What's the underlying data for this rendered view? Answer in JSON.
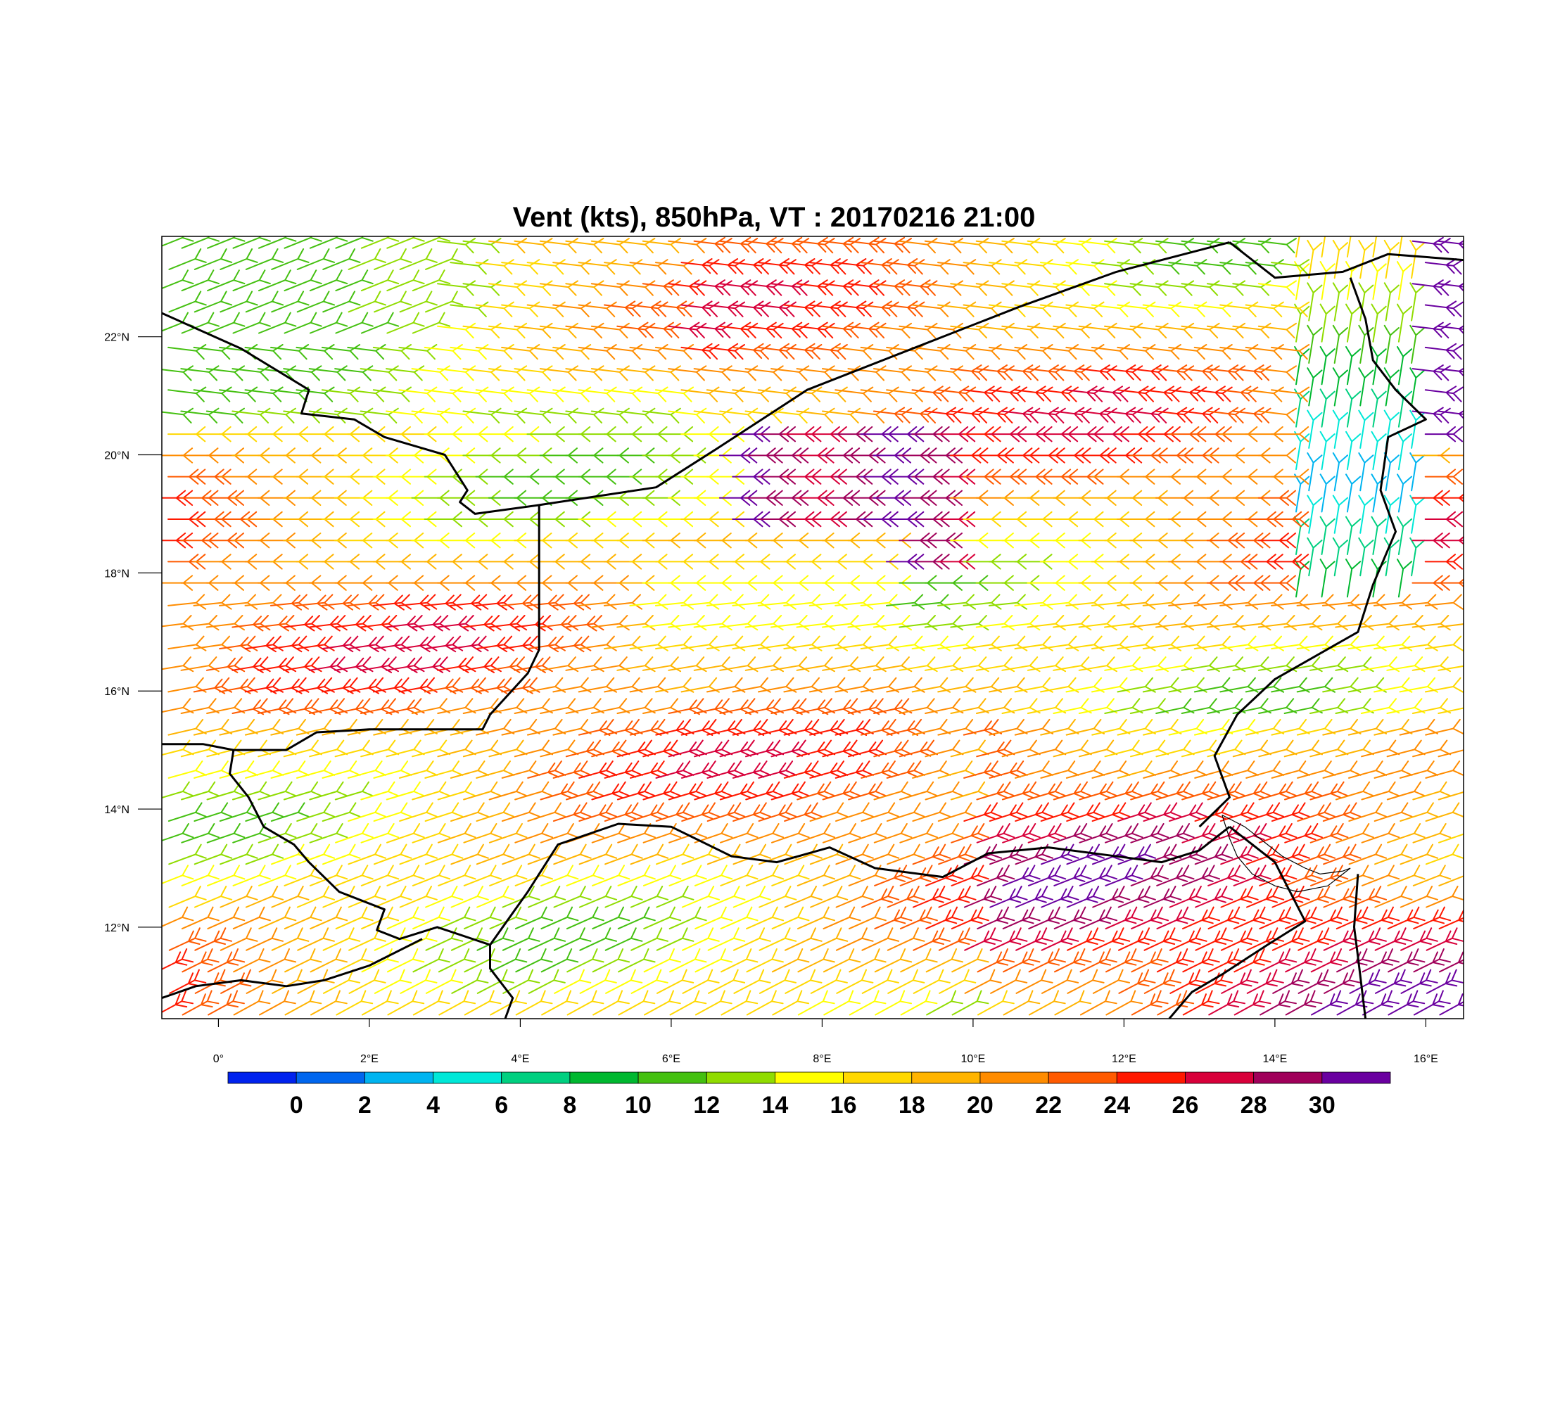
{
  "title": "Vent (kts), 850hPa, VT : 20170216  21:00",
  "map": {
    "lon_range": [
      -0.75,
      16.5
    ],
    "lat_range": [
      10.45,
      23.7
    ],
    "lon_ticks": [
      {
        "value": 0,
        "label": "0°"
      },
      {
        "value": 2,
        "label": "2°E"
      },
      {
        "value": 4,
        "label": "4°E"
      },
      {
        "value": 6,
        "label": "6°E"
      },
      {
        "value": 8,
        "label": "8°E"
      },
      {
        "value": 10,
        "label": "10°E"
      },
      {
        "value": 12,
        "label": "12°E"
      },
      {
        "value": 14,
        "label": "14°E"
      },
      {
        "value": 16,
        "label": "16°E"
      }
    ],
    "lat_ticks": [
      {
        "value": 12,
        "label": "12°N"
      },
      {
        "value": 14,
        "label": "14°N"
      },
      {
        "value": 16,
        "label": "16°N"
      },
      {
        "value": 18,
        "label": "18°N"
      },
      {
        "value": 20,
        "label": "20°N"
      },
      {
        "value": 22,
        "label": "22°N"
      }
    ],
    "borders": [
      [
        [
          -0.75,
          22.4
        ],
        [
          0.3,
          21.8
        ],
        [
          1.2,
          21.1
        ],
        [
          1.1,
          20.7
        ],
        [
          1.8,
          20.6
        ],
        [
          2.2,
          20.3
        ],
        [
          3.0,
          20.0
        ],
        [
          3.3,
          19.4
        ],
        [
          3.2,
          19.2
        ],
        [
          3.4,
          19.0
        ],
        [
          4.25,
          19.15
        ],
        [
          5.8,
          19.45
        ],
        [
          6.6,
          20.1
        ],
        [
          7.2,
          20.6
        ],
        [
          7.8,
          21.1
        ],
        [
          9.0,
          21.7
        ],
        [
          10.6,
          22.5
        ],
        [
          11.9,
          23.1
        ],
        [
          12.8,
          23.4
        ],
        [
          13.4,
          23.6
        ]
      ],
      [
        [
          13.4,
          23.6
        ],
        [
          14.0,
          23.0
        ],
        [
          14.9,
          23.1
        ],
        [
          15.5,
          23.4
        ],
        [
          16.5,
          23.3
        ]
      ],
      [
        [
          15.0,
          23.0
        ],
        [
          15.2,
          22.3
        ],
        [
          15.3,
          21.6
        ],
        [
          15.6,
          21.1
        ],
        [
          16.0,
          20.6
        ],
        [
          15.5,
          20.3
        ],
        [
          15.4,
          19.4
        ],
        [
          15.6,
          18.7
        ],
        [
          15.3,
          17.8
        ],
        [
          15.1,
          17.0
        ],
        [
          14.0,
          16.2
        ],
        [
          13.5,
          15.6
        ],
        [
          13.2,
          14.9
        ],
        [
          13.4,
          14.2
        ],
        [
          13.0,
          13.7
        ]
      ],
      [
        [
          4.25,
          19.15
        ],
        [
          4.25,
          16.7
        ],
        [
          4.1,
          16.3
        ],
        [
          3.6,
          15.6
        ],
        [
          3.5,
          15.35
        ],
        [
          2.0,
          15.35
        ],
        [
          1.3,
          15.3
        ],
        [
          0.9,
          15.0
        ],
        [
          0.2,
          15.0
        ],
        [
          -0.2,
          15.1
        ],
        [
          -0.75,
          15.1
        ]
      ],
      [
        [
          0.2,
          15.0
        ],
        [
          0.15,
          14.6
        ],
        [
          0.4,
          14.2
        ],
        [
          0.6,
          13.7
        ],
        [
          1.0,
          13.4
        ],
        [
          1.2,
          13.1
        ],
        [
          1.6,
          12.6
        ],
        [
          2.2,
          12.3
        ],
        [
          2.1,
          11.95
        ],
        [
          2.4,
          11.8
        ],
        [
          2.9,
          12.0
        ],
        [
          3.6,
          11.7
        ],
        [
          3.6,
          11.3
        ],
        [
          3.9,
          10.8
        ],
        [
          3.8,
          10.45
        ]
      ],
      [
        [
          3.6,
          11.7
        ],
        [
          4.1,
          12.6
        ],
        [
          4.5,
          13.4
        ],
        [
          5.3,
          13.75
        ],
        [
          6.0,
          13.7
        ],
        [
          6.8,
          13.2
        ],
        [
          7.4,
          13.1
        ],
        [
          8.1,
          13.35
        ],
        [
          8.7,
          13.0
        ],
        [
          9.6,
          12.85
        ],
        [
          10.2,
          13.25
        ],
        [
          11.0,
          13.35
        ],
        [
          11.9,
          13.2
        ],
        [
          12.5,
          13.1
        ],
        [
          13.0,
          13.3
        ],
        [
          13.4,
          13.7
        ]
      ],
      [
        [
          -0.75,
          10.8
        ],
        [
          -0.3,
          11.0
        ],
        [
          0.3,
          11.1
        ],
        [
          0.9,
          11.0
        ],
        [
          1.4,
          11.1
        ],
        [
          2.0,
          11.35
        ],
        [
          2.7,
          11.8
        ]
      ],
      [
        [
          13.4,
          13.7
        ],
        [
          14.0,
          13.1
        ],
        [
          14.4,
          12.1
        ],
        [
          13.9,
          11.7
        ],
        [
          13.3,
          11.2
        ],
        [
          12.9,
          10.9
        ],
        [
          12.6,
          10.45
        ]
      ],
      [
        [
          15.1,
          12.9
        ],
        [
          15.05,
          12.0
        ],
        [
          15.1,
          11.5
        ],
        [
          15.2,
          10.45
        ]
      ]
    ],
    "lake_outline": [
      [
        13.3,
        13.9
      ],
      [
        13.6,
        13.7
      ],
      [
        13.9,
        13.4
      ],
      [
        14.1,
        13.2
      ],
      [
        14.4,
        13.0
      ],
      [
        14.6,
        12.9
      ],
      [
        14.9,
        12.95
      ],
      [
        15.0,
        13.0
      ],
      [
        14.7,
        12.7
      ],
      [
        14.3,
        12.6
      ],
      [
        14.0,
        12.7
      ],
      [
        13.7,
        12.9
      ],
      [
        13.5,
        13.2
      ],
      [
        13.4,
        13.5
      ],
      [
        13.3,
        13.9
      ]
    ]
  },
  "colorbar": {
    "colors": [
      "#0022ee",
      "#0066ee",
      "#00b4f0",
      "#00e8d8",
      "#00d080",
      "#00b830",
      "#44c010",
      "#90dc00",
      "#ffff00",
      "#ffd800",
      "#ffb400",
      "#ff8c00",
      "#ff5a00",
      "#ff1800",
      "#d8003a",
      "#a0005a",
      "#6a00a0"
    ],
    "labels": [
      "0",
      "2",
      "4",
      "6",
      "8",
      "10",
      "12",
      "14",
      "16",
      "18",
      "20",
      "22",
      "24",
      "26",
      "28",
      "30"
    ]
  }
}
